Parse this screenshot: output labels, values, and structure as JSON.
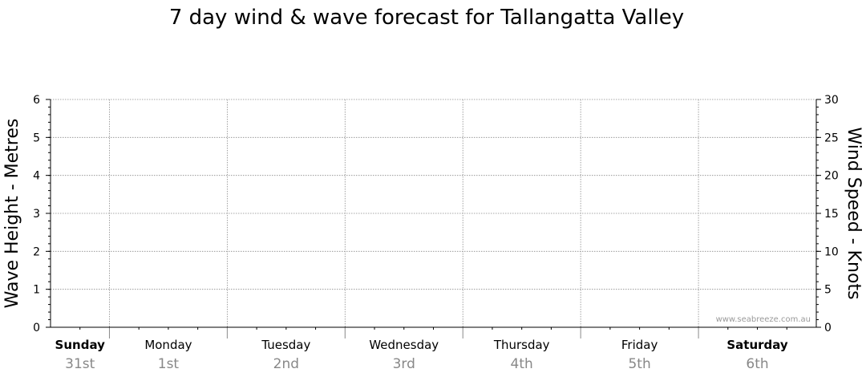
{
  "chart_data": {
    "type": "line",
    "title": "7 day wind & wave forecast for Tallangatta Valley",
    "left_axis": {
      "label": "Wave Height - Metres",
      "range": [
        0,
        6
      ],
      "ticks": [
        "0",
        "1",
        "2",
        "3",
        "4",
        "5",
        "6"
      ]
    },
    "right_axis": {
      "label": "Wind Speed - Knots",
      "range": [
        0,
        30
      ],
      "ticks": [
        "0",
        "5",
        "10",
        "15",
        "20",
        "25",
        "30"
      ]
    },
    "days": [
      {
        "name": "Sunday",
        "date": "31st",
        "bold": true
      },
      {
        "name": "Monday",
        "date": "1st",
        "bold": false
      },
      {
        "name": "Tuesday",
        "date": "2nd",
        "bold": false
      },
      {
        "name": "Wednesday",
        "date": "3rd",
        "bold": false
      },
      {
        "name": "Thursday",
        "date": "4th",
        "bold": false
      },
      {
        "name": "Friday",
        "date": "5th",
        "bold": false
      },
      {
        "name": "Saturday",
        "date": "6th",
        "bold": true
      }
    ],
    "series": [],
    "grid": true,
    "watermark": "www.seabreeze.com.au"
  }
}
